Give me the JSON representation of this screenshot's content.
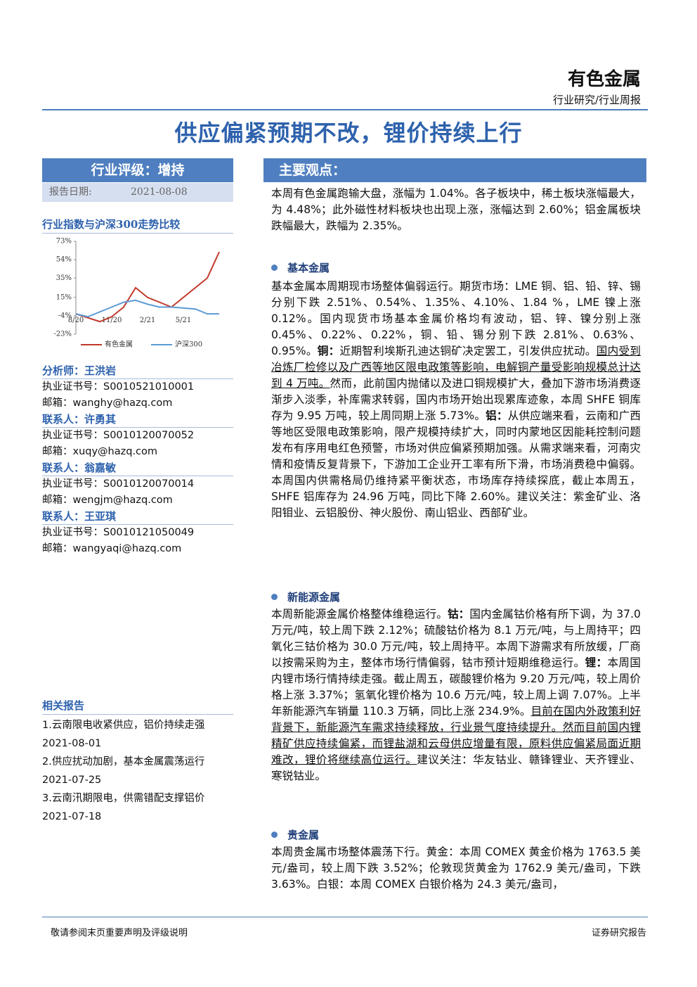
{
  "header": {
    "sector": "有色金属",
    "category": "行业研究/行业周报",
    "title": "供应偏紧预期不改，锂价持续上行"
  },
  "rating": {
    "label": "行业评级：增持",
    "date_label": "报告日期:",
    "date": "2021-08-08"
  },
  "chart_data": {
    "type": "line",
    "title": "行业指数与沪深300走势比较",
    "categories": [
      "8/20",
      null,
      null,
      "11/20",
      null,
      null,
      "2/21",
      null,
      null,
      "5/21",
      null,
      null,
      null
    ],
    "series": [
      {
        "name": "有色金属",
        "color": "#c0392b",
        "values": [
          -2,
          -6,
          -10,
          -5,
          5,
          25,
          15,
          10,
          5,
          15,
          25,
          35,
          62
        ]
      },
      {
        "name": "沪深300",
        "color": "#5b9bd5",
        "values": [
          -2,
          -5,
          0,
          5,
          10,
          12,
          8,
          5,
          5,
          4,
          3,
          -2,
          -2
        ]
      }
    ],
    "ylim": [
      -23,
      73
    ],
    "yticks": [
      {
        "value": 73,
        "label": "73%"
      },
      {
        "value": 54,
        "label": "54%"
      },
      {
        "value": 35,
        "label": "35%"
      },
      {
        "value": 15,
        "label": "15%"
      },
      {
        "value": -4,
        "label": "-4%"
      },
      {
        "value": -23,
        "label": "-23%"
      }
    ]
  },
  "contacts": [
    {
      "role": "分析师：王洪岩",
      "lines": [
        "执业证书号：S0010521010001",
        "邮箱：wanghy@hazq.com"
      ]
    },
    {
      "role": "联系人：许勇其",
      "lines": [
        "执业证书号：S0010120070052",
        "邮箱：xuqy@hazq.com"
      ]
    },
    {
      "role": "联系人：翁嘉敏",
      "lines": [
        "执业证书号：S0010120070014",
        "邮箱：wengjm@hazq.com"
      ]
    },
    {
      "role": "联系人：王亚琪",
      "lines": [
        "执业证书号：S0010121050049",
        "邮箱：wangyaqi@hazq.com"
      ]
    }
  ],
  "related": {
    "title": "相关报告",
    "items": [
      {
        "title": "1.云南限电收紧供应，铝价持续走强",
        "date": "2021-08-01"
      },
      {
        "title": "2.供应扰动加剧，基本金属震荡运行",
        "date": "2021-07-25"
      },
      {
        "title": "3.云南汛期限电，供需错配支撑铝价",
        "date": "2021-07-18"
      }
    ]
  },
  "main": {
    "title": "主要观点：",
    "intro": [
      {
        "text": "本周有色金属跑输大盘，涨幅为 1.04%。各子板块中，稀土板块涨幅最大，为 4.48%；此外磁性材料板块也出现上涨，涨幅达到 2.60%；铝金属板块跌幅最大，跌幅为 2.35%。"
      }
    ],
    "sections": [
      {
        "heading": "基本金属",
        "paragraph": [
          {
            "text": "基本金属本周期现市场整体偏弱运行。期货市场：LME 铜、铝、铅、锌、锡分别下跌 2.51%、0.54%、1.35%、4.10%、1.84 %，LME 镍上涨 0.12%。国内现货市场基本金属价格均有波动，铝、锌、镍分别上涨 0.45%、0.22%、0.22%，铜、铅、锡分别下跌 2.81%、0.63%、0.95%。"
          },
          {
            "text": "铜：",
            "style": "bold"
          },
          {
            "text": "近期智利埃斯孔迪达铜矿决定罢工，引发供应扰动。"
          },
          {
            "text": "国内受到冶炼厂检修以及广西等地区限电政策等影响，电解铜产量受影响规模总计达到 4 万吨。",
            "style": "underline"
          },
          {
            "text": "然而，此前国内抛储以及进口铜规模扩大，叠加下游市场消费逐渐步入淡季，补库需求转弱，国内市场开始出现累库迹象，本周 SHFE 铜库存为 9.95 万吨，较上周同期上涨 5.73%。"
          },
          {
            "text": "铝：",
            "style": "bold"
          },
          {
            "text": "从供应端来看，云南和广西等地区受限电政策影响，限产规模持续扩大，同时内蒙地区因能耗控制问题发布有序用电红色预警，市场对供应偏紧预期加强。从需求端来看，河南灾情和疫情反复背景下，下游加工企业开工率有所下滑，市场消费稳中偏弱。本周国内供需格局仍维持紧平衡状态，市场库存持续探底，截止本周五， SHFE 铝库存为 24.96 万吨，同比下降 2.60%。建议关注：紫金矿业、洛阳钼业、云铝股份、神火股份、南山铝业、西部矿业。"
          }
        ]
      },
      {
        "heading": "新能源金属",
        "paragraph": [
          {
            "text": "本周新能源金属价格整体维稳运行。"
          },
          {
            "text": "钴：",
            "style": "bold"
          },
          {
            "text": "国内金属钴价格有所下调，为 37.0 万元/吨，较上周下跌 2.12%；硫酸钴价格为 8.1 万元/吨，与上周持平；四氧化三钴价格为 30.0 万元/吨，较上周持平。本周下游需求有所放缓，厂商以按需采购为主，整体市场行情偏弱，钴市预计短期维稳运行。"
          },
          {
            "text": "锂：",
            "style": "bold"
          },
          {
            "text": "本周国内锂市场行情持续走强。截止周五，碳酸锂价格为 9.20 万元/吨，较上周价格上涨 3.37%；氢氧化锂价格为 10.6 万元/吨，较上周上调 7.07%。上半年新能源汽车销量 110.3 万辆，同比上涨 234.9%。"
          },
          {
            "text": "目前在国内外政策利好背景下，新能源汽车需求持续释放，行业景气度持续提升。然而目前国内锂精矿供应持续偏紧，而锂盐湖和云母供应增量有限，原料供应偏紧局面近期难改，锂价将继续高位运行。",
            "style": "underline"
          },
          {
            "text": "建议关注：华友钴业、赣锋锂业、天齐锂业、寒锐钴业。"
          }
        ]
      },
      {
        "heading": "贵金属",
        "paragraph": [
          {
            "text": "本周贵金属市场整体震荡下行。黄金：本周 COMEX 黄金价格为 1763.5 美元/盎司，较上周下跌 3.52%；伦敦现货黄金为 1762.9 美元/盎司，下跌 3.63%。白银：本周 COMEX 白银价格为 24.3 美元/盎司，"
          }
        ]
      }
    ]
  },
  "footer": {
    "left": "敬请参阅末页重要声明及评级说明",
    "right": "证券研究报告"
  }
}
